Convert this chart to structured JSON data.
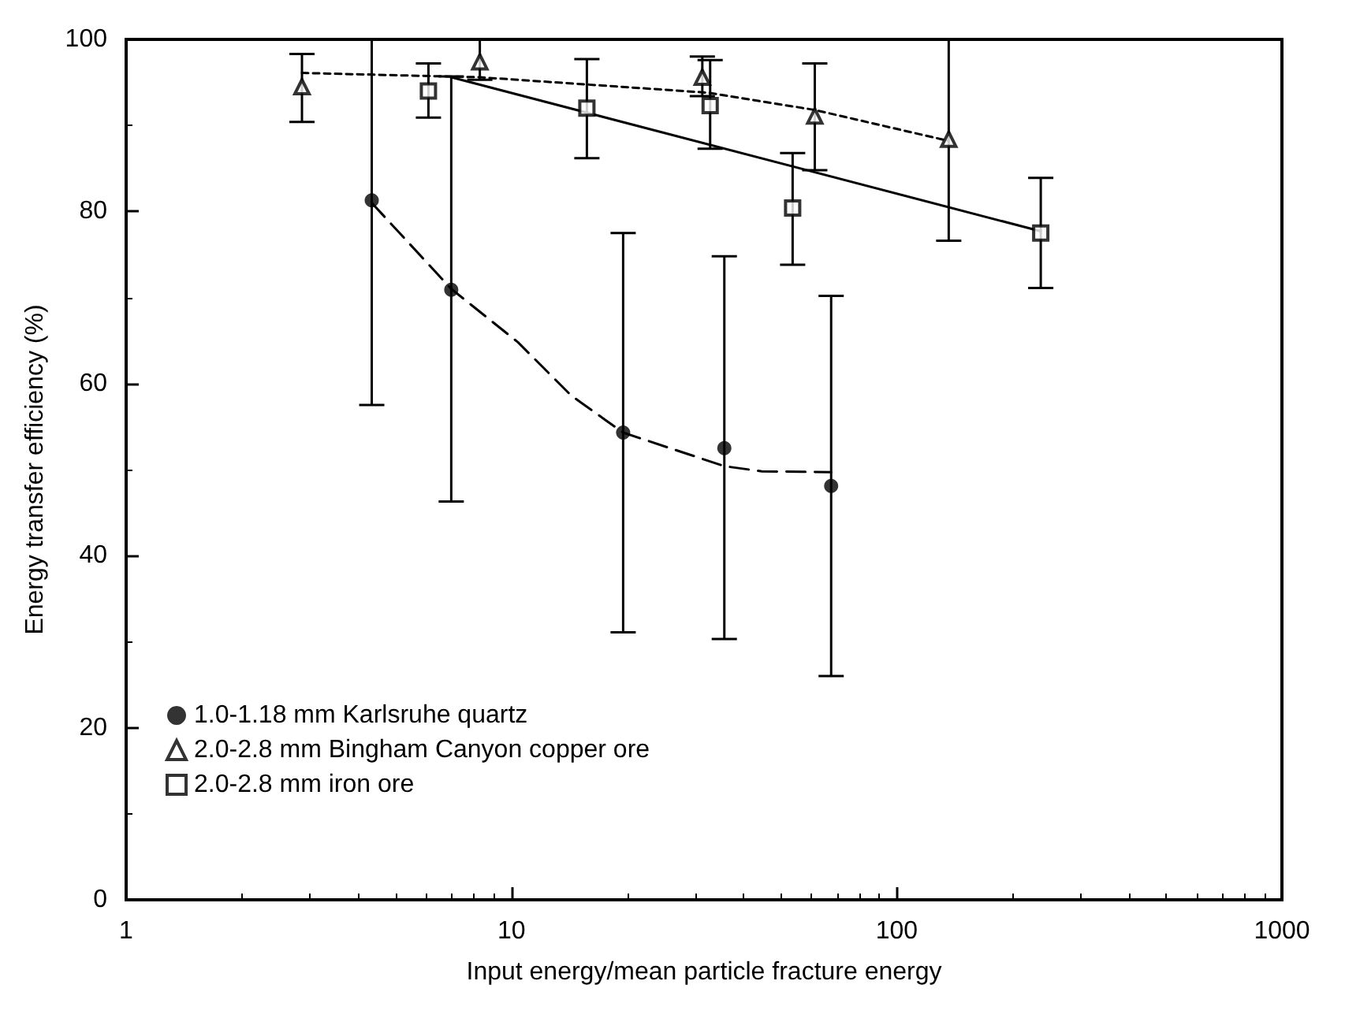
{
  "chart_data": {
    "type": "scatter",
    "xlabel": "Input energy/mean particle fracture energy",
    "ylabel": "Energy transfer efficiency (%)",
    "log": "x",
    "xlim": [
      1,
      1000
    ],
    "xticks": [
      1,
      10,
      100,
      1000
    ],
    "ylim": [
      0,
      100
    ],
    "yticks": [
      0,
      20,
      40,
      60,
      80,
      100
    ],
    "grid": false,
    "legend": "bottom left",
    "series": [
      {
        "name": "1.0-1.18 mm Karlsruhe quartz",
        "color": "#000000",
        "marker": "circle",
        "x": [
          4.34,
          6.98,
          19.5,
          35.7,
          67.6
        ],
        "values": [
          81.3,
          70.9,
          54.3,
          52.5,
          48.1
        ],
        "errors": [
          [
            57.5,
            100
          ],
          [
            46.3,
            95.7
          ],
          [
            31.1,
            77.5
          ],
          [
            30.3,
            74.8
          ],
          [
            26,
            70.2
          ]
        ]
      },
      {
        "name": "2.0-2.8 mm Bingham Canyon copper ore",
        "color": "#000000",
        "marker": "triangle",
        "x": [
          2.86,
          8.28,
          31.3,
          61.3,
          136.5
        ],
        "values": [
          94.5,
          97.4,
          95.6,
          91.1,
          88.4
        ],
        "errors": [
          [
            90.4,
            98.3
          ],
          [
            95.3,
            100
          ],
          [
            93.4,
            98
          ],
          [
            84.8,
            97.2
          ],
          [
            76.6,
            100
          ]
        ]
      },
      {
        "name": "2.0-2.8 mm iron ore",
        "color": "#000000",
        "marker": "square",
        "x": [
          6.09,
          15.7,
          32.8,
          53.7,
          236.6
        ],
        "values": [
          94,
          92,
          92.3,
          80.4,
          77.5
        ],
        "errors": [
          [
            90.9,
            97.2
          ],
          [
            86.2,
            97.7
          ],
          [
            87.3,
            97.6
          ],
          [
            73.8,
            86.8
          ],
          [
            71.1,
            83.9
          ]
        ]
      },
      {
        "type": "line",
        "color": "#000000",
        "marker": "none",
        "line_style": "dashed",
        "x": [
          4.34,
          6.98,
          10.4,
          14.3,
          19.5,
          35.7,
          44.7,
          67.6
        ],
        "values": [
          81,
          71,
          64.8,
          58.6,
          54.3,
          50.4,
          49.8,
          49.7
        ]
      },
      {
        "type": "line",
        "color": "#000000",
        "marker": "none",
        "line_style": "dotted",
        "x": [
          2.86,
          8.28,
          28,
          32.4,
          61.3,
          136.5
        ],
        "values": [
          96.1,
          95.6,
          94,
          93.8,
          91.8,
          88.2
        ]
      },
      {
        "type": "line",
        "color": "#000000",
        "marker": "none",
        "line_style": "solid",
        "x": [
          6.98,
          236.6
        ],
        "values": [
          95.6,
          77.7
        ]
      }
    ]
  }
}
